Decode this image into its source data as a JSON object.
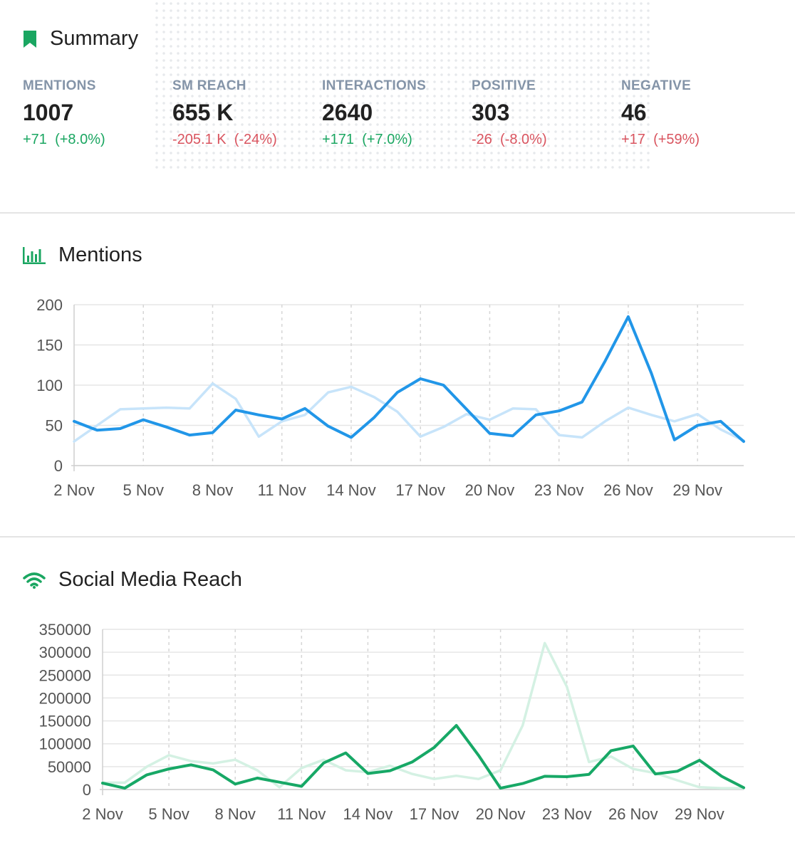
{
  "summary": {
    "title": "Summary",
    "stats": [
      {
        "label": "MENTIONS",
        "value": "1007",
        "delta": "+71",
        "delta_pct": "(+8.0%)",
        "trend": "up"
      },
      {
        "label": "SM REACH",
        "value": "655 K",
        "delta": "-205.1 K",
        "delta_pct": "(-24%)",
        "trend": "down"
      },
      {
        "label": "INTERACTIONS",
        "value": "2640",
        "delta": "+171",
        "delta_pct": "(+7.0%)",
        "trend": "up"
      },
      {
        "label": "POSITIVE",
        "value": "303",
        "delta": "-26",
        "delta_pct": "(-8.0%)",
        "trend": "down"
      },
      {
        "label": "NEGATIVE",
        "value": "46",
        "delta": "+17",
        "delta_pct": "(+59%)",
        "trend": "down"
      }
    ]
  },
  "mentions_section": {
    "title": "Mentions",
    "icon": "bar-chart-icon"
  },
  "reach_section": {
    "title": "Social Media Reach",
    "icon": "wifi-icon"
  },
  "colors": {
    "accent_green": "#1aa661",
    "mentions_current": "#2196e8",
    "mentions_previous": "#c7e4fa",
    "reach_current": "#17a866",
    "reach_previous": "#d4f1e3"
  },
  "chart_data": [
    {
      "type": "line",
      "x_labels": [
        "2 Nov",
        "5 Nov",
        "8 Nov",
        "11 Nov",
        "14 Nov",
        "17 Nov",
        "20 Nov",
        "23 Nov",
        "26 Nov",
        "29 Nov"
      ],
      "x": [
        "2 Nov",
        "3 Nov",
        "4 Nov",
        "5 Nov",
        "6 Nov",
        "7 Nov",
        "8 Nov",
        "9 Nov",
        "10 Nov",
        "11 Nov",
        "12 Nov",
        "13 Nov",
        "14 Nov",
        "15 Nov",
        "16 Nov",
        "17 Nov",
        "18 Nov",
        "19 Nov",
        "20 Nov",
        "21 Nov",
        "22 Nov",
        "23 Nov",
        "24 Nov",
        "25 Nov",
        "26 Nov",
        "27 Nov",
        "28 Nov",
        "29 Nov",
        "30 Nov",
        "1 Dec"
      ],
      "yticks": [
        0,
        50,
        100,
        150,
        200
      ],
      "ylim": [
        0,
        200
      ],
      "grid": true,
      "series": [
        {
          "values": [
            30,
            50,
            70,
            71,
            72,
            71,
            102,
            83,
            36,
            55,
            63,
            91,
            98,
            85,
            67,
            36,
            48,
            64,
            57,
            71,
            70,
            38,
            35,
            55,
            72,
            63,
            55,
            64,
            45,
            31
          ],
          "color": "#c7e4fa"
        },
        {
          "values": [
            55,
            44,
            46,
            57,
            48,
            38,
            41,
            69,
            63,
            58,
            71,
            49,
            35,
            60,
            91,
            108,
            100,
            70,
            40,
            37,
            63,
            68,
            79,
            130,
            185,
            115,
            32,
            50,
            55,
            30
          ],
          "color": "#2196e8"
        }
      ]
    },
    {
      "type": "line",
      "x_labels": [
        "2 Nov",
        "5 Nov",
        "8 Nov",
        "11 Nov",
        "14 Nov",
        "17 Nov",
        "20 Nov",
        "23 Nov",
        "26 Nov",
        "29 Nov"
      ],
      "x": [
        "2 Nov",
        "3 Nov",
        "4 Nov",
        "5 Nov",
        "6 Nov",
        "7 Nov",
        "8 Nov",
        "9 Nov",
        "10 Nov",
        "11 Nov",
        "12 Nov",
        "13 Nov",
        "14 Nov",
        "15 Nov",
        "16 Nov",
        "17 Nov",
        "18 Nov",
        "19 Nov",
        "20 Nov",
        "21 Nov",
        "22 Nov",
        "23 Nov",
        "24 Nov",
        "25 Nov",
        "26 Nov",
        "27 Nov",
        "28 Nov",
        "29 Nov",
        "30 Nov",
        "1 Dec"
      ],
      "yticks": [
        0,
        50000,
        100000,
        150000,
        200000,
        250000,
        300000,
        350000
      ],
      "ylim": [
        0,
        350000
      ],
      "grid": true,
      "series": [
        {
          "values": [
            15000,
            15000,
            50000,
            75000,
            62000,
            57000,
            65000,
            42000,
            5000,
            47000,
            65000,
            42000,
            38000,
            52000,
            34000,
            23000,
            30000,
            23000,
            42000,
            140000,
            320000,
            225000,
            60000,
            72000,
            45000,
            36000,
            20000,
            5000,
            3000,
            3000
          ],
          "color": "#d4f1e3"
        },
        {
          "values": [
            14000,
            3000,
            32000,
            45000,
            54000,
            43000,
            12000,
            25000,
            16000,
            7000,
            58000,
            80000,
            35000,
            41000,
            60000,
            92000,
            140000,
            75000,
            3000,
            13000,
            29000,
            28000,
            33000,
            85000,
            95000,
            34000,
            40000,
            64000,
            29000,
            4000
          ],
          "color": "#17a866"
        }
      ]
    }
  ]
}
